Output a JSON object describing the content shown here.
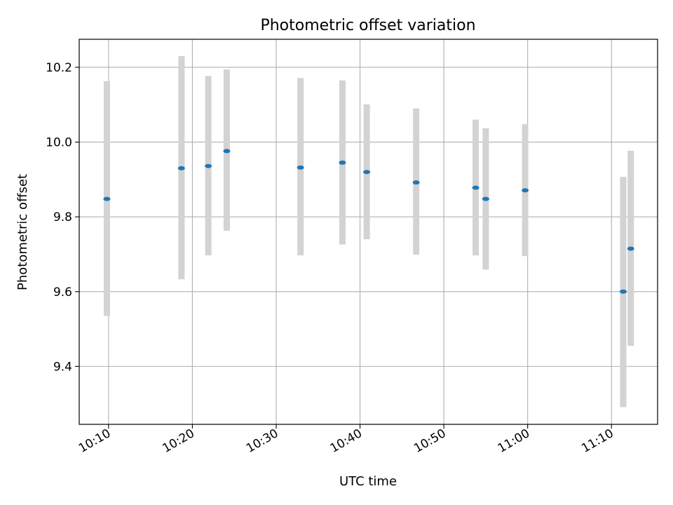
{
  "chart_data": {
    "type": "scatter",
    "title": "Photometric offset variation",
    "xlabel": "UTC time",
    "ylabel": "Photometric offset",
    "x_axis_type": "time",
    "xlim": [
      "10:06:30",
      "11:15:30"
    ],
    "ylim": [
      9.245,
      10.275
    ],
    "x_ticks": [
      "10:10",
      "10:20",
      "10:30",
      "10:40",
      "10:50",
      "11:00",
      "11:10"
    ],
    "y_ticks": [
      "9.4",
      "9.6",
      "9.8",
      "10.0",
      "10.2"
    ],
    "grid": true,
    "legend": "none",
    "marker_color": "#1f77b4",
    "errorbar_color": "#d3d3d3",
    "points": [
      {
        "time": "10:09:48",
        "value": 9.848,
        "err_low": 9.535,
        "err_high": 10.163
      },
      {
        "time": "10:18:42",
        "value": 9.93,
        "err_low": 9.633,
        "err_high": 10.23
      },
      {
        "time": "10:21:54",
        "value": 9.936,
        "err_low": 9.697,
        "err_high": 10.177
      },
      {
        "time": "10:24:06",
        "value": 9.976,
        "err_low": 9.763,
        "err_high": 10.194
      },
      {
        "time": "10:32:54",
        "value": 9.932,
        "err_low": 9.697,
        "err_high": 10.171
      },
      {
        "time": "10:37:54",
        "value": 9.945,
        "err_low": 9.726,
        "err_high": 10.165
      },
      {
        "time": "10:40:48",
        "value": 9.92,
        "err_low": 9.74,
        "err_high": 10.101
      },
      {
        "time": "10:46:42",
        "value": 9.892,
        "err_low": 9.699,
        "err_high": 10.09
      },
      {
        "time": "10:53:48",
        "value": 9.878,
        "err_low": 9.697,
        "err_high": 10.06
      },
      {
        "time": "10:55:00",
        "value": 9.848,
        "err_low": 9.659,
        "err_high": 10.037
      },
      {
        "time": "10:59:42",
        "value": 9.871,
        "err_low": 9.695,
        "err_high": 10.048
      },
      {
        "time": "11:11:24",
        "value": 9.6,
        "err_low": 9.291,
        "err_high": 9.907
      },
      {
        "time": "11:12:18",
        "value": 9.715,
        "err_low": 9.455,
        "err_high": 9.977
      }
    ]
  }
}
